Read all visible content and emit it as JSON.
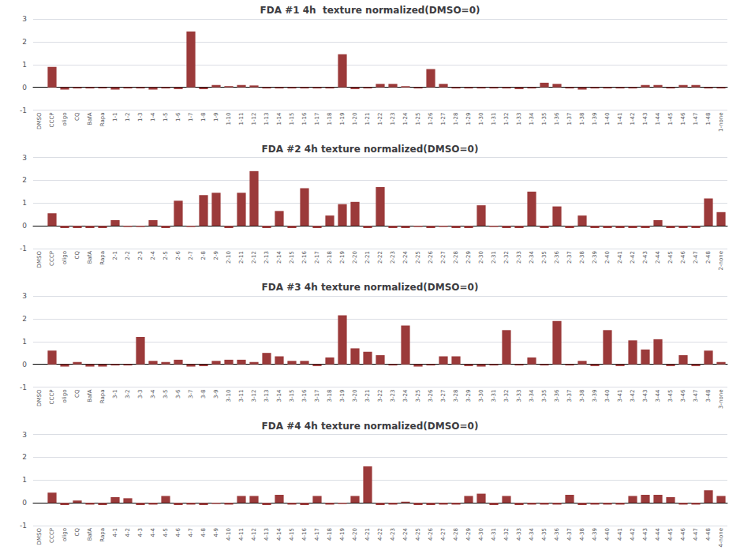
{
  "chart_data": [
    {
      "type": "bar",
      "title": "FDA #1 4h  texture normalized(DMSO=0)",
      "categories": [
        "DMSO",
        "CCCP",
        "oligo",
        "CQ",
        "BafA",
        "Rapa",
        "1-1",
        "1-2",
        "1-3",
        "1-4",
        "1-5",
        "1-6",
        "1-7",
        "1-8",
        "1-9",
        "1-10",
        "1-11",
        "1-12",
        "1-13",
        "1-14",
        "1-15",
        "1-16",
        "1-17",
        "1-18",
        "1-19",
        "1-20",
        "1-21",
        "1-22",
        "1-23",
        "1-24",
        "1-25",
        "1-26",
        "1-27",
        "1-28",
        "1-29",
        "1-30",
        "1-31",
        "1-32",
        "1-33",
        "1-34",
        "1-35",
        "1-36",
        "1-37",
        "1-38",
        "1-39",
        "1-40",
        "1-41",
        "1-42",
        "1-43",
        "1-44",
        "1-45",
        "1-46",
        "1-47",
        "1-48",
        "1-none"
      ],
      "values": [
        0.0,
        0.9,
        -0.1,
        -0.05,
        -0.05,
        -0.05,
        -0.1,
        -0.05,
        -0.05,
        -0.1,
        -0.05,
        -0.08,
        2.45,
        -0.08,
        0.1,
        0.05,
        0.1,
        0.08,
        -0.05,
        -0.05,
        -0.05,
        -0.05,
        -0.05,
        -0.05,
        1.45,
        -0.08,
        -0.05,
        0.15,
        0.15,
        0.05,
        -0.05,
        0.8,
        0.15,
        -0.05,
        -0.05,
        -0.05,
        -0.05,
        -0.05,
        -0.08,
        -0.05,
        0.2,
        0.15,
        -0.05,
        -0.1,
        -0.05,
        -0.05,
        -0.05,
        -0.05,
        0.1,
        0.1,
        -0.05,
        0.1,
        0.1,
        -0.05,
        -0.05
      ],
      "color": "#9B3A3A",
      "ylim": [
        -1,
        3
      ],
      "yticks": [
        -1,
        0,
        1,
        2,
        3
      ],
      "grid": true
    },
    {
      "type": "bar",
      "title": "FDA #2 4h texture normalized(DMSO=0)",
      "categories": [
        "DMSO",
        "CCCP",
        "oligo",
        "CQ",
        "BafA",
        "Rapa",
        "2-1",
        "2-2",
        "2-3",
        "2-4",
        "2-5",
        "2-6",
        "2-7",
        "2-8",
        "2-9",
        "2-10",
        "2-11",
        "2-12",
        "2-13",
        "2-14",
        "2-15",
        "2-16",
        "2-17",
        "2-18",
        "2-19",
        "2-20",
        "2-21",
        "2-22",
        "2-23",
        "2-24",
        "2-25",
        "2-26",
        "2-27",
        "2-28",
        "2-29",
        "2-30",
        "2-31",
        "2-32",
        "2-33",
        "2-34",
        "2-35",
        "2-36",
        "2-37",
        "2-38",
        "2-39",
        "2-40",
        "2-41",
        "2-42",
        "2-43",
        "2-44",
        "2-45",
        "2-46",
        "2-47",
        "2-48",
        "2-none"
      ],
      "values": [
        0.0,
        0.55,
        -0.1,
        -0.1,
        -0.1,
        -0.1,
        0.25,
        -0.05,
        -0.05,
        0.25,
        -0.1,
        1.1,
        -0.05,
        1.35,
        1.45,
        -0.1,
        1.45,
        2.4,
        -0.1,
        0.65,
        -0.1,
        1.65,
        -0.1,
        0.45,
        0.95,
        1.05,
        -0.1,
        1.7,
        -0.1,
        -0.1,
        -0.05,
        -0.1,
        -0.05,
        -0.1,
        -0.1,
        0.9,
        -0.05,
        -0.1,
        -0.1,
        1.5,
        -0.1,
        0.85,
        -0.1,
        0.45,
        -0.1,
        -0.1,
        -0.1,
        -0.1,
        -0.1,
        0.25,
        -0.1,
        -0.1,
        -0.1,
        1.2,
        0.6
      ],
      "color": "#9B3A3A",
      "ylim": [
        -1,
        3
      ],
      "yticks": [
        -1,
        0,
        1,
        2,
        3
      ],
      "grid": true
    },
    {
      "type": "bar",
      "title": "FDA #3 4h texture normalized(DMSO=0)",
      "categories": [
        "DMSO",
        "CCCP",
        "oligo",
        "CQ",
        "BafA",
        "Rapa",
        "3-1",
        "3-2",
        "3-3",
        "3-4",
        "3-5",
        "3-6",
        "3-7",
        "3-8",
        "3-9",
        "3-10",
        "3-11",
        "3-12",
        "3-13",
        "3-14",
        "3-15",
        "3-16",
        "3-17",
        "3-18",
        "3-19",
        "3-20",
        "3-21",
        "3-22",
        "3-23",
        "3-24",
        "3-25",
        "3-26",
        "3-27",
        "3-28",
        "3-29",
        "3-30",
        "3-31",
        "3-32",
        "3-33",
        "3-34",
        "3-35",
        "3-36",
        "3-37",
        "3-38",
        "3-39",
        "3-40",
        "3-41",
        "3-42",
        "3-43",
        "3-44",
        "3-45",
        "3-46",
        "3-47",
        "3-48",
        "3-none"
      ],
      "values": [
        0.0,
        0.6,
        -0.1,
        0.1,
        -0.1,
        -0.1,
        -0.05,
        -0.05,
        1.2,
        0.15,
        0.1,
        0.2,
        -0.1,
        -0.08,
        0.15,
        0.2,
        0.2,
        0.1,
        0.5,
        0.35,
        0.15,
        0.15,
        -0.08,
        0.3,
        2.15,
        0.7,
        0.55,
        0.4,
        -0.05,
        1.7,
        -0.1,
        -0.05,
        0.35,
        0.35,
        -0.08,
        -0.1,
        -0.05,
        1.5,
        -0.05,
        0.3,
        -0.05,
        1.9,
        -0.05,
        0.15,
        -0.08,
        1.5,
        -0.08,
        1.05,
        0.65,
        1.1,
        -0.08,
        0.4,
        -0.08,
        0.6,
        0.1
      ],
      "color": "#9B3A3A",
      "ylim": [
        -1,
        3
      ],
      "yticks": [
        -1,
        0,
        1,
        2,
        3
      ],
      "grid": true
    },
    {
      "type": "bar",
      "title": "FDA #4 4h texture normalized(DMSO=0)",
      "categories": [
        "DMSO",
        "CCCP",
        "oligo",
        "CQ",
        "BafA",
        "Rapa",
        "4-1",
        "4-2",
        "4-3",
        "4-4",
        "4-5",
        "4-6",
        "4-7",
        "4-8",
        "4-9",
        "4-10",
        "4-11",
        "4-12",
        "4-13",
        "4-14",
        "4-15",
        "4-16",
        "4-17",
        "4-18",
        "4-19",
        "4-20",
        "4-21",
        "4-22",
        "4-23",
        "4-24",
        "4-25",
        "4-26",
        "4-27",
        "4-28",
        "4-29",
        "4-30",
        "4-31",
        "4-32",
        "4-33",
        "4-34",
        "4-35",
        "4-36",
        "4-37",
        "4-38",
        "4-39",
        "4-40",
        "4-41",
        "4-42",
        "4-43",
        "4-44",
        "4-45",
        "4-46",
        "4-47",
        "4-48",
        "4-none"
      ],
      "values": [
        0.0,
        0.45,
        -0.1,
        0.1,
        -0.08,
        -0.1,
        0.25,
        0.2,
        -0.1,
        -0.08,
        0.3,
        -0.1,
        -0.08,
        -0.1,
        -0.05,
        -0.08,
        0.3,
        0.3,
        -0.1,
        0.35,
        -0.08,
        -0.1,
        0.3,
        -0.08,
        -0.05,
        0.3,
        1.6,
        -0.1,
        -0.08,
        0.05,
        -0.1,
        -0.1,
        -0.08,
        -0.08,
        0.3,
        0.4,
        -0.1,
        0.3,
        -0.1,
        -0.08,
        -0.08,
        -0.08,
        0.35,
        -0.1,
        -0.08,
        -0.08,
        -0.08,
        0.3,
        0.35,
        0.35,
        0.25,
        -0.08,
        -0.08,
        0.55,
        0.3
      ],
      "color": "#9B3A3A",
      "ylim": [
        -1,
        3
      ],
      "yticks": [
        -1,
        0,
        1,
        2,
        3
      ],
      "grid": true
    }
  ]
}
